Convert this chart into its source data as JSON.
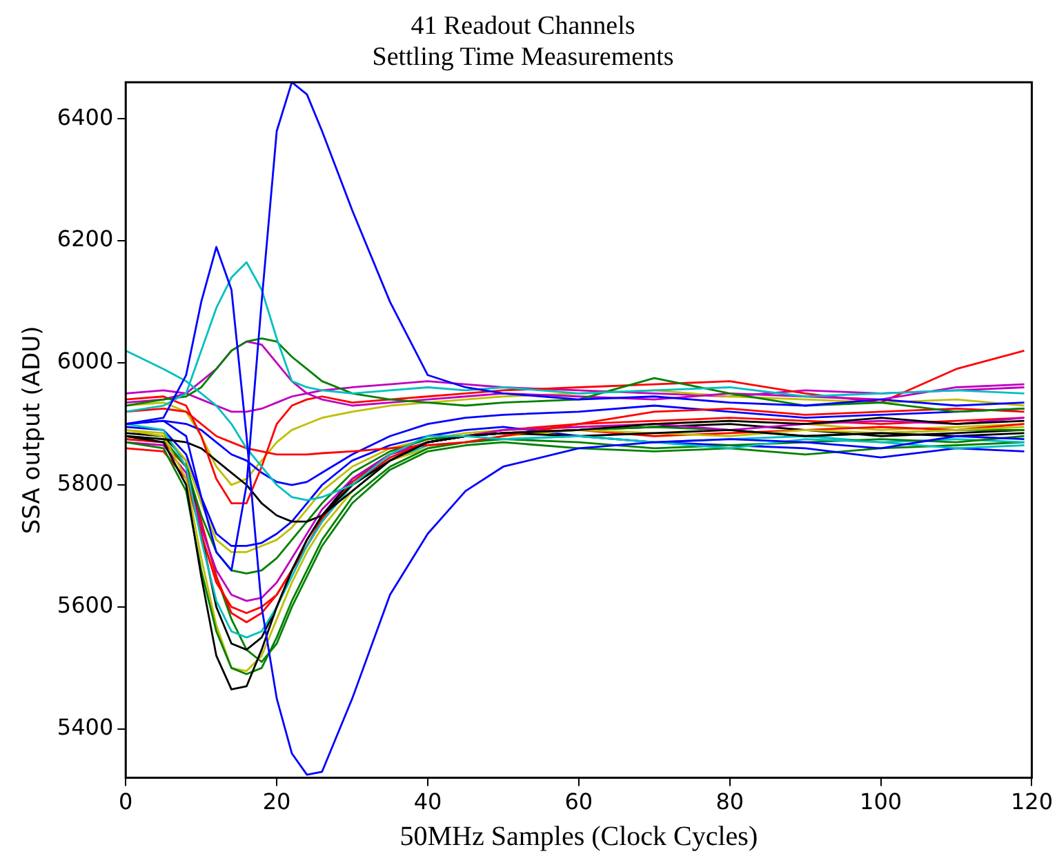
{
  "chart_data": {
    "type": "line",
    "title": "41 Readout Channels",
    "subtitle": "Settling Time Measurements",
    "xlabel": "50MHz Samples (Clock Cycles)",
    "ylabel": "SSA output (ADU)",
    "x": [
      0,
      5,
      8,
      10,
      12,
      14,
      16,
      18,
      20,
      22,
      24,
      26,
      30,
      35,
      40,
      45,
      50,
      60,
      70,
      80,
      90,
      100,
      110,
      119
    ],
    "xlim": [
      0,
      120
    ],
    "xticks": [
      0,
      20,
      40,
      60,
      80,
      100,
      120
    ],
    "ylim": [
      5320,
      6460
    ],
    "yticks": [
      5400,
      5600,
      5800,
      6000,
      6200,
      6400
    ],
    "grid": false,
    "legend": false,
    "marker": "none",
    "line_style": "solid",
    "series": [
      {
        "color": "#0000ff",
        "values": [
          5900,
          5905,
          5880,
          5780,
          5690,
          5660,
          5800,
          6100,
          6380,
          6460,
          6440,
          6380,
          6250,
          6100,
          5980,
          5960,
          5950,
          5940,
          5945,
          5935,
          5930,
          5940,
          5930,
          5935
        ]
      },
      {
        "color": "#0000ff",
        "values": [
          5900,
          5910,
          5980,
          6100,
          6190,
          6120,
          5880,
          5600,
          5450,
          5360,
          5325,
          5330,
          5450,
          5620,
          5720,
          5790,
          5830,
          5860,
          5870,
          5875,
          5870,
          5860,
          5880,
          5875
        ]
      },
      {
        "color": "#00bfbf",
        "values": [
          5920,
          5930,
          5950,
          6020,
          6090,
          6140,
          6165,
          6120,
          6040,
          5970,
          5960,
          5955,
          5950,
          5955,
          5960,
          5955,
          5960,
          5950,
          5955,
          5960,
          5945,
          5950,
          5955,
          5950
        ]
      },
      {
        "color": "#00bfbf",
        "values": [
          6020,
          5990,
          5970,
          5950,
          5930,
          5900,
          5860,
          5830,
          5800,
          5780,
          5775,
          5780,
          5800,
          5850,
          5880,
          5880,
          5875,
          5880,
          5870,
          5860,
          5875,
          5870,
          5860,
          5865
        ]
      },
      {
        "color": "#008000",
        "values": [
          5930,
          5940,
          5945,
          5960,
          5990,
          6020,
          6035,
          6040,
          6035,
          6010,
          5990,
          5970,
          5950,
          5940,
          5935,
          5930,
          5935,
          5940,
          5975,
          5950,
          5930,
          5935,
          5920,
          5925
        ]
      },
      {
        "color": "#bf00bf",
        "values": [
          5935,
          5940,
          5950,
          5970,
          5990,
          6020,
          6035,
          6030,
          6000,
          5970,
          5950,
          5940,
          5930,
          5935,
          5940,
          5945,
          5950,
          5945,
          5940,
          5950,
          5945,
          5940,
          5960,
          5965
        ]
      },
      {
        "color": "#ff0000",
        "values": [
          5940,
          5945,
          5930,
          5880,
          5810,
          5770,
          5770,
          5830,
          5900,
          5930,
          5940,
          5945,
          5935,
          5940,
          5945,
          5950,
          5955,
          5960,
          5965,
          5970,
          5950,
          5935,
          5990,
          6020
        ]
      },
      {
        "color": "#000000",
        "values": [
          5880,
          5875,
          5870,
          5860,
          5840,
          5820,
          5800,
          5770,
          5750,
          5740,
          5740,
          5750,
          5790,
          5840,
          5870,
          5880,
          5885,
          5890,
          5900,
          5905,
          5900,
          5910,
          5900,
          5905
        ]
      },
      {
        "color": "#ff0000",
        "values": [
          5920,
          5925,
          5920,
          5900,
          5880,
          5870,
          5860,
          5855,
          5850,
          5850,
          5850,
          5852,
          5855,
          5860,
          5865,
          5870,
          5880,
          5900,
          5920,
          5925,
          5915,
          5920,
          5925,
          5920
        ]
      },
      {
        "color": "#0000ff",
        "values": [
          5900,
          5905,
          5900,
          5890,
          5870,
          5850,
          5840,
          5820,
          5805,
          5800,
          5805,
          5820,
          5850,
          5880,
          5900,
          5910,
          5915,
          5920,
          5930,
          5920,
          5910,
          5915,
          5920,
          5925
        ]
      },
      {
        "color": "#bfbf00",
        "values": [
          5930,
          5935,
          5920,
          5880,
          5830,
          5800,
          5810,
          5840,
          5870,
          5890,
          5900,
          5910,
          5920,
          5930,
          5935,
          5940,
          5945,
          5950,
          5955,
          5945,
          5940,
          5935,
          5940,
          5930
        ]
      },
      {
        "color": "#000000",
        "values": [
          5880,
          5870,
          5800,
          5650,
          5520,
          5465,
          5470,
          5530,
          5600,
          5660,
          5710,
          5750,
          5800,
          5840,
          5870,
          5880,
          5885,
          5880,
          5885,
          5890,
          5880,
          5885,
          5880,
          5885
        ]
      },
      {
        "color": "#008000",
        "values": [
          5870,
          5860,
          5790,
          5660,
          5560,
          5500,
          5490,
          5500,
          5550,
          5610,
          5660,
          5710,
          5780,
          5830,
          5860,
          5870,
          5875,
          5870,
          5860,
          5865,
          5870,
          5875,
          5870,
          5880
        ]
      },
      {
        "color": "#bfbf00",
        "values": [
          5890,
          5880,
          5810,
          5680,
          5570,
          5500,
          5495,
          5520,
          5580,
          5640,
          5690,
          5730,
          5790,
          5840,
          5860,
          5870,
          5880,
          5890,
          5885,
          5880,
          5890,
          5885,
          5890,
          5895
        ]
      },
      {
        "color": "#00bfbf",
        "values": [
          5900,
          5890,
          5830,
          5710,
          5610,
          5560,
          5550,
          5560,
          5600,
          5650,
          5700,
          5740,
          5800,
          5840,
          5865,
          5870,
          5875,
          5880,
          5870,
          5875,
          5880,
          5870,
          5875,
          5870
        ]
      },
      {
        "color": "#ff0000",
        "values": [
          5860,
          5855,
          5810,
          5720,
          5640,
          5600,
          5590,
          5600,
          5620,
          5660,
          5700,
          5740,
          5800,
          5845,
          5870,
          5880,
          5885,
          5890,
          5880,
          5885,
          5890,
          5895,
          5890,
          5900
        ]
      },
      {
        "color": "#bf00bf",
        "values": [
          5870,
          5865,
          5820,
          5730,
          5660,
          5620,
          5610,
          5615,
          5640,
          5680,
          5720,
          5760,
          5810,
          5850,
          5870,
          5880,
          5890,
          5895,
          5900,
          5890,
          5900,
          5905,
          5900,
          5910
        ]
      },
      {
        "color": "#008000",
        "values": [
          5880,
          5875,
          5830,
          5750,
          5690,
          5660,
          5655,
          5660,
          5680,
          5710,
          5740,
          5770,
          5820,
          5855,
          5875,
          5880,
          5885,
          5890,
          5895,
          5890,
          5880,
          5885,
          5890,
          5890
        ]
      },
      {
        "color": "#bfbf00",
        "values": [
          5890,
          5885,
          5840,
          5770,
          5710,
          5690,
          5690,
          5700,
          5710,
          5730,
          5760,
          5790,
          5830,
          5860,
          5875,
          5885,
          5890,
          5895,
          5900,
          5905,
          5900,
          5890,
          5895,
          5900
        ]
      },
      {
        "color": "#0000ff",
        "values": [
          5895,
          5890,
          5850,
          5780,
          5720,
          5700,
          5700,
          5705,
          5720,
          5740,
          5770,
          5800,
          5840,
          5865,
          5880,
          5890,
          5895,
          5880,
          5870,
          5865,
          5860,
          5845,
          5860,
          5855
        ]
      },
      {
        "color": "#000000",
        "values": [
          5885,
          5880,
          5840,
          5720,
          5600,
          5540,
          5530,
          5550,
          5600,
          5660,
          5710,
          5750,
          5810,
          5850,
          5870,
          5880,
          5885,
          5890,
          5895,
          5900,
          5890,
          5880,
          5885,
          5890
        ]
      },
      {
        "color": "#ff0000",
        "values": [
          5875,
          5870,
          5830,
          5740,
          5650,
          5590,
          5575,
          5590,
          5620,
          5660,
          5700,
          5745,
          5805,
          5850,
          5870,
          5880,
          5890,
          5900,
          5905,
          5910,
          5905,
          5900,
          5905,
          5910
        ]
      },
      {
        "color": "#bf00bf",
        "values": [
          5950,
          5955,
          5950,
          5940,
          5930,
          5920,
          5920,
          5925,
          5935,
          5945,
          5950,
          5955,
          5960,
          5965,
          5970,
          5965,
          5960,
          5955,
          5950,
          5945,
          5955,
          5950,
          5955,
          5960
        ]
      },
      {
        "color": "#008000",
        "values": [
          5875,
          5870,
          5830,
          5740,
          5650,
          5580,
          5530,
          5510,
          5540,
          5600,
          5650,
          5700,
          5770,
          5825,
          5855,
          5865,
          5870,
          5860,
          5855,
          5860,
          5850,
          5860,
          5865,
          5870
        ]
      }
    ]
  }
}
